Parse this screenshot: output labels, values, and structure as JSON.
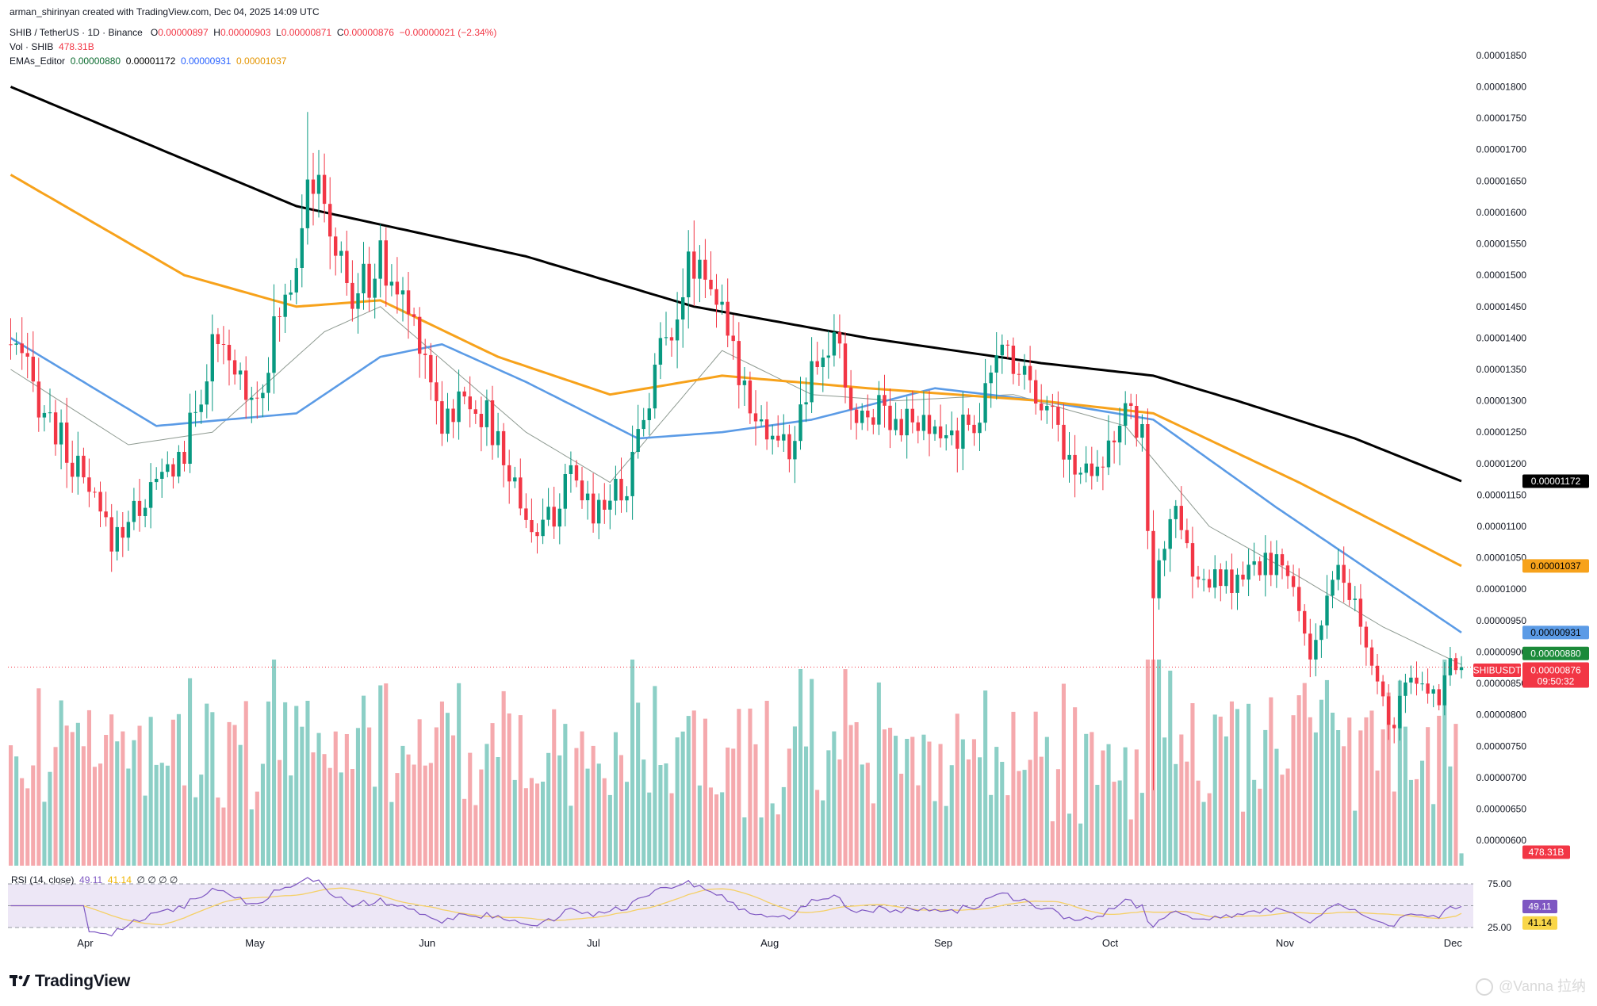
{
  "header": {
    "credit": "arman_shirinyan created with TradingView.com, Dec 04, 2025 14:09 UTC",
    "symbol": "SHIB / TetherUS · 1D · Binance",
    "ohlc": {
      "o_label": "O",
      "o": "0.00000897",
      "h_label": "H",
      "h": "0.00000903",
      "l_label": "L",
      "l": "0.00000871",
      "c_label": "C",
      "c": "0.00000876",
      "change": "−0.00000021 (−2.34%)"
    },
    "vol_label": "Vol · SHIB",
    "vol_value": "478.31B",
    "ema_label": "EMAs_Editor",
    "ema_values": [
      "0.00000880",
      "0.00001172",
      "0.00000931",
      "0.00001037"
    ]
  },
  "rsi_header": {
    "label": "RSI (14, close)",
    "value": "49.11",
    "ma": "41.14",
    "extras": "∅ ∅ ∅ ∅"
  },
  "colors": {
    "up": "#089981",
    "down": "#f23645",
    "vol_up": "#8ccfc6",
    "vol_down": "#f5a9ad",
    "ema200": "#000000",
    "ema100": "#f7a21b",
    "ema50": "#5b9be6",
    "ema20": "#8e9a91",
    "rsi_line": "#7e57c2",
    "rsi_ma": "#f5d066",
    "rsi_band": "#ede7f6"
  },
  "price_tags": {
    "ema200": "0.00001172",
    "ema100": "0.00001037",
    "ema50": "0.00000931",
    "ema20": "0.00000880",
    "symbol": "SHIBUSDT",
    "price": "0.00000876",
    "countdown": "09:50:32",
    "volume": "478.31B",
    "rsi": "49.11",
    "rsi_ma": "41.14"
  },
  "logo_text": "TradingView",
  "watermark": "@Vanna 拉纳",
  "chart_data": {
    "type": "candlestick",
    "title": "SHIB / TetherUS · 1D · Binance",
    "x_axis": {
      "ticks": [
        "Apr",
        "May",
        "Jun",
        "Jul",
        "Aug",
        "Sep",
        "Oct",
        "Nov",
        "Dec"
      ]
    },
    "y_axis": {
      "scale": "linear",
      "range": [
        5.9e-06,
        1.86e-05
      ],
      "ticks": [
        "0.00001850",
        "0.00001800",
        "0.00001750",
        "0.00001700",
        "0.00001650",
        "0.00001600",
        "0.00001550",
        "0.00001500",
        "0.00001450",
        "0.00001400",
        "0.00001350",
        "0.00001300",
        "0.00001250",
        "0.00001200",
        "0.00001150",
        "0.00001100",
        "0.00001050",
        "0.00001000",
        "0.00000950",
        "0.00000900",
        "0.00000850",
        "0.00000800",
        "0.00000750",
        "0.00000700",
        "0.00000650",
        "0.00000600"
      ]
    },
    "rsi_axis": {
      "ticks": [
        "75.00",
        "25.00"
      ]
    },
    "grid": false,
    "last_close": 8.76e-06,
    "price_keypoints": [
      {
        "date": "2025-03-20",
        "price": 1.39e-05
      },
      {
        "date": "2025-04-07",
        "price": 1.08e-05
      },
      {
        "date": "2025-04-20",
        "price": 1.22e-05
      },
      {
        "date": "2025-04-25",
        "price": 1.38e-05
      },
      {
        "date": "2025-05-03",
        "price": 1.31e-05
      },
      {
        "date": "2025-05-10",
        "price": 1.53e-05
      },
      {
        "date": "2025-05-12",
        "price": 1.68e-05
      },
      {
        "date": "2025-05-20",
        "price": 1.46e-05
      },
      {
        "date": "2025-05-25",
        "price": 1.52e-05
      },
      {
        "date": "2025-06-01",
        "price": 1.41e-05
      },
      {
        "date": "2025-06-05",
        "price": 1.27e-05
      },
      {
        "date": "2025-06-10",
        "price": 1.31e-05
      },
      {
        "date": "2025-06-13",
        "price": 1.27e-05
      },
      {
        "date": "2025-06-22",
        "price": 1.08e-05
      },
      {
        "date": "2025-06-28",
        "price": 1.17e-05
      },
      {
        "date": "2025-07-02",
        "price": 1.13e-05
      },
      {
        "date": "2025-07-08",
        "price": 1.17e-05
      },
      {
        "date": "2025-07-10",
        "price": 1.25e-05
      },
      {
        "date": "2025-07-14",
        "price": 1.38e-05
      },
      {
        "date": "2025-07-20",
        "price": 1.53e-05
      },
      {
        "date": "2025-07-23",
        "price": 1.5e-05
      },
      {
        "date": "2025-07-26",
        "price": 1.39e-05
      },
      {
        "date": "2025-08-02",
        "price": 1.25e-05
      },
      {
        "date": "2025-08-06",
        "price": 1.22e-05
      },
      {
        "date": "2025-08-10",
        "price": 1.33e-05
      },
      {
        "date": "2025-08-14",
        "price": 1.4e-05
      },
      {
        "date": "2025-08-18",
        "price": 1.26e-05
      },
      {
        "date": "2025-08-22",
        "price": 1.3e-05
      },
      {
        "date": "2025-08-26",
        "price": 1.27e-05
      },
      {
        "date": "2025-09-01",
        "price": 1.24e-05
      },
      {
        "date": "2025-09-06",
        "price": 1.25e-05
      },
      {
        "date": "2025-09-10",
        "price": 1.3e-05
      },
      {
        "date": "2025-09-13",
        "price": 1.39e-05
      },
      {
        "date": "2025-09-18",
        "price": 1.34e-05
      },
      {
        "date": "2025-09-22",
        "price": 1.28e-05
      },
      {
        "date": "2025-09-26",
        "price": 1.18e-05
      },
      {
        "date": "2025-10-01",
        "price": 1.22e-05
      },
      {
        "date": "2025-10-05",
        "price": 1.27e-05
      },
      {
        "date": "2025-10-08",
        "price": 1.25e-05
      },
      {
        "date": "2025-10-10",
        "price": 9.8e-06
      },
      {
        "date": "2025-10-13",
        "price": 1.13e-05
      },
      {
        "date": "2025-10-18",
        "price": 1.01e-05
      },
      {
        "date": "2025-10-25",
        "price": 1.01e-05
      },
      {
        "date": "2025-11-01",
        "price": 1.05e-05
      },
      {
        "date": "2025-11-05",
        "price": 9.7e-06
      },
      {
        "date": "2025-11-07",
        "price": 9e-06
      },
      {
        "date": "2025-11-12",
        "price": 1.02e-05
      },
      {
        "date": "2025-11-15",
        "price": 9.7e-06
      },
      {
        "date": "2025-11-21",
        "price": 7.8e-06
      },
      {
        "date": "2025-11-25",
        "price": 8.5e-06
      },
      {
        "date": "2025-11-30",
        "price": 8.3e-06
      },
      {
        "date": "2025-12-02",
        "price": 9e-06
      },
      {
        "date": "2025-12-04",
        "price": 8.76e-06
      }
    ],
    "ema200_keypoints": [
      {
        "date": "2025-03-20",
        "value": 1.8e-05
      },
      {
        "date": "2025-05-10",
        "value": 1.61e-05
      },
      {
        "date": "2025-06-20",
        "value": 1.53e-05
      },
      {
        "date": "2025-07-20",
        "value": 1.45e-05
      },
      {
        "date": "2025-08-20",
        "value": 1.4e-05
      },
      {
        "date": "2025-09-20",
        "value": 1.36e-05
      },
      {
        "date": "2025-10-10",
        "value": 1.34e-05
      },
      {
        "date": "2025-10-25",
        "value": 1.3e-05
      },
      {
        "date": "2025-11-15",
        "value": 1.24e-05
      },
      {
        "date": "2025-12-04",
        "value": 1.172e-05
      }
    ],
    "ema100_keypoints": [
      {
        "date": "2025-03-20",
        "value": 1.66e-05
      },
      {
        "date": "2025-04-20",
        "value": 1.5e-05
      },
      {
        "date": "2025-05-10",
        "value": 1.45e-05
      },
      {
        "date": "2025-05-25",
        "value": 1.46e-05
      },
      {
        "date": "2025-06-15",
        "value": 1.37e-05
      },
      {
        "date": "2025-07-05",
        "value": 1.31e-05
      },
      {
        "date": "2025-07-25",
        "value": 1.34e-05
      },
      {
        "date": "2025-08-20",
        "value": 1.32e-05
      },
      {
        "date": "2025-09-20",
        "value": 1.3e-05
      },
      {
        "date": "2025-10-10",
        "value": 1.28e-05
      },
      {
        "date": "2025-11-05",
        "value": 1.17e-05
      },
      {
        "date": "2025-12-04",
        "value": 1.037e-05
      }
    ],
    "ema50_keypoints": [
      {
        "date": "2025-03-20",
        "value": 1.4e-05
      },
      {
        "date": "2025-04-15",
        "value": 1.26e-05
      },
      {
        "date": "2025-05-10",
        "value": 1.28e-05
      },
      {
        "date": "2025-05-25",
        "value": 1.37e-05
      },
      {
        "date": "2025-06-05",
        "value": 1.39e-05
      },
      {
        "date": "2025-06-20",
        "value": 1.33e-05
      },
      {
        "date": "2025-07-10",
        "value": 1.24e-05
      },
      {
        "date": "2025-07-25",
        "value": 1.25e-05
      },
      {
        "date": "2025-08-10",
        "value": 1.27e-05
      },
      {
        "date": "2025-09-01",
        "value": 1.32e-05
      },
      {
        "date": "2025-09-20",
        "value": 1.3e-05
      },
      {
        "date": "2025-10-10",
        "value": 1.27e-05
      },
      {
        "date": "2025-11-01",
        "value": 1.13e-05
      },
      {
        "date": "2025-12-04",
        "value": 9.31e-06
      }
    ],
    "ema20_keypoints": [
      {
        "date": "2025-03-20",
        "value": 1.35e-05
      },
      {
        "date": "2025-04-10",
        "value": 1.23e-05
      },
      {
        "date": "2025-04-25",
        "value": 1.25e-05
      },
      {
        "date": "2025-05-15",
        "value": 1.41e-05
      },
      {
        "date": "2025-05-25",
        "value": 1.45e-05
      },
      {
        "date": "2025-06-20",
        "value": 1.25e-05
      },
      {
        "date": "2025-07-05",
        "value": 1.17e-05
      },
      {
        "date": "2025-07-25",
        "value": 1.38e-05
      },
      {
        "date": "2025-08-10",
        "value": 1.31e-05
      },
      {
        "date": "2025-08-25",
        "value": 1.3e-05
      },
      {
        "date": "2025-09-15",
        "value": 1.31e-05
      },
      {
        "date": "2025-10-05",
        "value": 1.26e-05
      },
      {
        "date": "2025-10-20",
        "value": 1.1e-05
      },
      {
        "date": "2025-11-05",
        "value": 1.02e-05
      },
      {
        "date": "2025-11-20",
        "value": 9.4e-06
      },
      {
        "date": "2025-12-04",
        "value": 8.8e-06
      }
    ]
  }
}
